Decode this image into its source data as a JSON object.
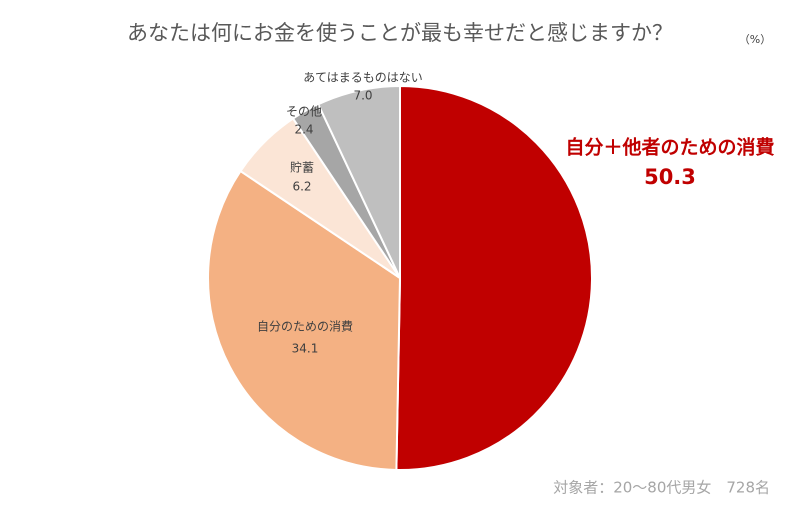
{
  "chart_data": {
    "type": "pie",
    "title": "あなたは何にお金を使うことが最も幸せだと感じますか？",
    "unit": "（%）",
    "note": "対象者：20～80代男女　728名",
    "categories": [
      "自分＋他者のための消費",
      "自分のための消費",
      "貯蓄",
      "その他",
      "あてはまるものはない"
    ],
    "values": [
      50.3,
      34.1,
      6.2,
      2.4,
      7.0
    ],
    "value_labels": [
      "50.3",
      "34.1",
      "6.2",
      "2.4",
      "7.0"
    ],
    "colors": [
      "#c00000",
      "#f4b183",
      "#fbe5d6",
      "#a6a6a6",
      "#bfbfbf"
    ]
  }
}
